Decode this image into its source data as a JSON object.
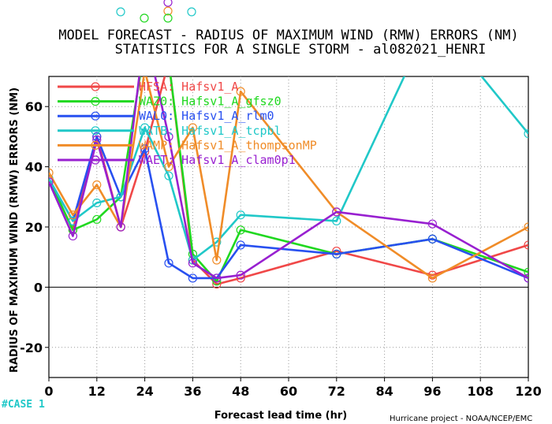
{
  "title_line1": "MODEL FORECAST - RADIUS OF MAXIMUM WIND (RMW) ERRORS (NM)",
  "title_line2": "STATISTICS FOR A SINGLE STORM - al082021_HENRI",
  "xlabel": "Forecast lead time (hr)",
  "ylabel": "RADIUS OF MAXIMUM WIND (RMW) ERRORS (NM)",
  "credit": "Hurricane project - NOAA/NCEP/EMC",
  "case_label": "#CASE 1",
  "chart_data": {
    "type": "line",
    "xlim": [
      0,
      120
    ],
    "ylim": [
      -30,
      70
    ],
    "x_ticks": [
      0,
      12,
      24,
      36,
      48,
      60,
      72,
      84,
      96,
      108,
      120
    ],
    "y_ticks": [
      -20,
      0,
      20,
      40,
      60
    ],
    "grid": true,
    "legend_position": "top-left",
    "series": [
      {
        "name": "HFSA: Hafsv1_A",
        "color": "#f04848",
        "x": [
          0,
          6,
          12,
          18,
          24,
          30,
          36,
          42,
          48,
          72,
          96,
          120
        ],
        "y": [
          36,
          19,
          50,
          20,
          45,
          75,
          9,
          1,
          3,
          12,
          4,
          14
        ]
      },
      {
        "name": "WAZ0: Hafsv1_A_gfsz0",
        "color": "#20d820",
        "x": [
          0,
          6,
          12,
          18,
          24,
          30,
          36,
          42,
          48,
          72,
          96,
          120
        ],
        "y": [
          36,
          19,
          22.5,
          30,
          80,
          75,
          11,
          2,
          19,
          11,
          16,
          5
        ]
      },
      {
        "name": "WAL0: Hafsv1_A_rlm0",
        "color": "#2850f0",
        "x": [
          0,
          6,
          12,
          18,
          24,
          30,
          36,
          42,
          48,
          72,
          96,
          120
        ],
        "y": [
          36,
          22,
          50,
          30,
          46,
          8,
          3,
          3,
          14,
          11,
          16,
          3
        ]
      },
      {
        "name": "WATB: Hafsv1_A_tcpbl",
        "color": "#20c8c8",
        "x": [
          0,
          6,
          12,
          18,
          24,
          30,
          36,
          42,
          48,
          72,
          96,
          120
        ],
        "y": [
          36,
          22,
          28,
          30,
          53,
          37,
          9,
          15,
          24,
          22,
          90,
          51
        ]
      },
      {
        "name": "WAMP: Hafsv1_A_thompsonMP",
        "color": "#f08c28",
        "x": [
          0,
          6,
          12,
          18,
          24,
          30,
          36,
          42,
          48,
          72,
          96,
          120
        ],
        "y": [
          38,
          24,
          34,
          20,
          72,
          40,
          53,
          9,
          65,
          25,
          3,
          20
        ]
      },
      {
        "name": "WAET: Hafsv1_A_clam0p1",
        "color": "#9820d0",
        "x": [
          0,
          6,
          12,
          18,
          24,
          30,
          36,
          42,
          48,
          72,
          96,
          120
        ],
        "y": [
          35,
          17,
          49,
          20,
          85,
          50,
          8,
          3,
          4,
          25,
          21,
          3
        ]
      }
    ]
  }
}
